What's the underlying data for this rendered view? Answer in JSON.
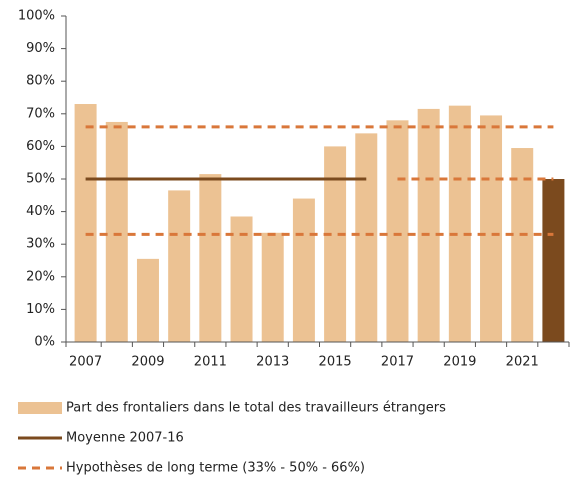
{
  "chart_data": {
    "type": "bar",
    "categories": [
      "2007",
      null,
      "2009",
      null,
      "2011",
      null,
      "2013",
      null,
      "2015",
      null,
      "2017",
      null,
      "2019",
      null,
      "2021",
      null
    ],
    "series": [
      {
        "name": "Part des frontaliers dans le total des travailleurs étrangers",
        "type": "bar",
        "color": "#ecc293",
        "colors": [
          "#ecc293",
          "#ecc293",
          "#ecc293",
          "#ecc293",
          "#ecc293",
          "#ecc293",
          "#ecc293",
          "#ecc293",
          "#ecc293",
          "#ecc293",
          "#ecc293",
          "#ecc293",
          "#ecc293",
          "#ecc293",
          "#ecc293",
          "#7b4a1e"
        ],
        "values": [
          73,
          67.5,
          25.5,
          46.5,
          51.5,
          38.5,
          33.5,
          44,
          60,
          64,
          68,
          71.5,
          72.5,
          69.5,
          59.5,
          50
        ]
      },
      {
        "name": "Moyenne 2007-16",
        "type": "line",
        "color": "#7b4a1e",
        "dash": false,
        "values": [
          50,
          50,
          50,
          50,
          50,
          50,
          50,
          50,
          50,
          50,
          null,
          null,
          null,
          null,
          null,
          null
        ]
      },
      {
        "name": "Hypothèses de long terme (33% - 50% - 66%)",
        "type": "line",
        "color": "#d9773a",
        "dash": true,
        "values": [
          66,
          66,
          66,
          66,
          66,
          66,
          66,
          66,
          66,
          66,
          66,
          66,
          66,
          66,
          66,
          66
        ]
      },
      {
        "type": "line",
        "color": "#d9773a",
        "dash": true,
        "values": [
          null,
          null,
          null,
          null,
          null,
          null,
          null,
          null,
          null,
          null,
          50,
          50,
          50,
          50,
          50,
          50
        ]
      },
      {
        "type": "line",
        "color": "#d9773a",
        "dash": true,
        "values": [
          33,
          33,
          33,
          33,
          33,
          33,
          33,
          33,
          33,
          33,
          33,
          33,
          33,
          33,
          33,
          33
        ]
      }
    ],
    "ylim": [
      0,
      100
    ],
    "yticks": [
      {
        "value": 0,
        "label": "0%"
      },
      {
        "value": 10,
        "label": "10%"
      },
      {
        "value": 20,
        "label": "20%"
      },
      {
        "value": 30,
        "label": "30%"
      },
      {
        "value": 40,
        "label": "40%"
      },
      {
        "value": 50,
        "label": "50%"
      },
      {
        "value": 60,
        "label": "60%"
      },
      {
        "value": 70,
        "label": "70%"
      },
      {
        "value": 80,
        "label": "80%"
      },
      {
        "value": 90,
        "label": "90%"
      },
      {
        "value": 100,
        "label": "100%"
      }
    ],
    "grid": false
  }
}
